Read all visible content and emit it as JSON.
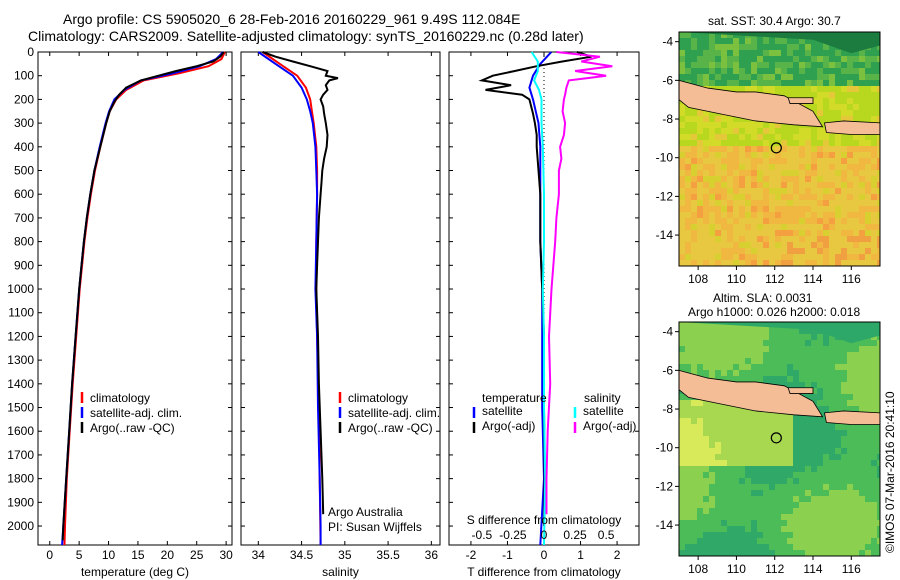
{
  "header": {
    "line1": "Argo profile: CS 5905020_6 28-Feb-2016 20160229_961 9.49S 112.084E",
    "line2": "Climatology: CARS2009. Satellite-adjusted climatology: synTS_20160229.nc (0.28d later)"
  },
  "colors": {
    "climatology": "#ff0000",
    "satellite": "#0000ff",
    "argo": "#000000",
    "salinity_satellite": "#00ffff",
    "salinity_argo": "#ff00ff",
    "land": "#f4bd96"
  },
  "chart_data": [
    {
      "type": "line",
      "panel": "temperature",
      "xlabel": "temperature (deg C)",
      "ylabel": "",
      "xlim": [
        -2,
        31
      ],
      "ylim": [
        2080,
        0
      ],
      "xticks": [
        0,
        5,
        10,
        15,
        20,
        25,
        30
      ],
      "yticks": [
        0,
        100,
        200,
        300,
        400,
        500,
        600,
        700,
        800,
        900,
        1000,
        1100,
        1200,
        1300,
        1400,
        1500,
        1600,
        1700,
        1800,
        1900,
        2000
      ],
      "legend": [
        "climatology",
        "satellite-adj. clim.",
        "Argo(..raw -QC)"
      ],
      "series": [
        {
          "name": "climatology",
          "depth": [
            0,
            30,
            60,
            90,
            120,
            160,
            200,
            250,
            300,
            400,
            500,
            600,
            700,
            800,
            900,
            1000,
            1200,
            1400,
            1600,
            1800,
            2000,
            2080
          ],
          "values": [
            29.8,
            29.2,
            27.0,
            22.0,
            16.0,
            13.0,
            11.3,
            10.2,
            9.6,
            8.6,
            7.7,
            7.0,
            6.4,
            5.9,
            5.5,
            5.1,
            4.5,
            3.9,
            3.4,
            2.9,
            2.6,
            2.5
          ]
        },
        {
          "name": "satellite-adj. clim.",
          "depth": [
            0,
            30,
            60,
            90,
            120,
            160,
            200,
            250,
            300,
            400,
            500,
            600,
            700,
            800,
            900,
            1000,
            1200,
            1400,
            1600,
            1800,
            2000,
            2080
          ],
          "values": [
            29.5,
            28.3,
            25.5,
            21.0,
            15.5,
            12.7,
            11.0,
            10.1,
            9.5,
            8.5,
            7.6,
            6.9,
            6.3,
            5.8,
            5.4,
            5.0,
            4.4,
            3.8,
            3.3,
            2.8,
            2.3,
            2.1
          ]
        },
        {
          "name": "Argo(..raw -QC)",
          "depth": [
            0,
            20,
            40,
            60,
            80,
            100,
            120,
            150,
            180,
            210,
            250,
            300,
            400,
            500,
            600,
            700,
            800,
            900,
            1000,
            1200,
            1400,
            1600,
            1800,
            2000,
            2060
          ],
          "values": [
            29.6,
            29.0,
            27.8,
            25.0,
            21.5,
            18.5,
            15.5,
            13.0,
            11.8,
            11.0,
            10.2,
            9.6,
            8.6,
            7.6,
            6.9,
            6.3,
            5.8,
            5.4,
            5.0,
            4.4,
            3.8,
            3.3,
            2.8,
            2.3,
            2.2
          ]
        }
      ]
    },
    {
      "type": "line",
      "panel": "salinity",
      "xlabel": "salinity",
      "xlim": [
        33.8,
        36.1
      ],
      "ylim": [
        2080,
        0
      ],
      "xticks": [
        34,
        34.5,
        35,
        35.5,
        36
      ],
      "legend": [
        "climatology",
        "satellite-adj. clim.",
        "Argo(..raw -QC)"
      ],
      "annotation": [
        "Argo Australia",
        "PI: Susan Wijffels"
      ],
      "series": [
        {
          "name": "climatology",
          "depth": [
            0,
            50,
            100,
            150,
            200,
            250,
            300,
            400,
            500,
            600,
            800,
            1000,
            1200,
            1500,
            1800,
            2080
          ],
          "values": [
            34.05,
            34.25,
            34.45,
            34.55,
            34.6,
            34.62,
            34.64,
            34.67,
            34.68,
            34.68,
            34.67,
            34.67,
            34.68,
            34.7,
            34.71,
            34.72
          ]
        },
        {
          "name": "satellite-adj. clim.",
          "depth": [
            0,
            50,
            100,
            150,
            200,
            250,
            300,
            400,
            500,
            600,
            800,
            1000,
            1200,
            1500,
            1800,
            2000,
            2080
          ],
          "values": [
            34.0,
            34.2,
            34.4,
            34.5,
            34.56,
            34.6,
            34.63,
            34.66,
            34.67,
            34.68,
            34.67,
            34.66,
            34.68,
            34.69,
            34.71,
            34.72,
            34.72
          ]
        },
        {
          "name": "Argo(..raw -QC)",
          "depth": [
            0,
            20,
            40,
            60,
            80,
            100,
            110,
            120,
            140,
            160,
            180,
            200,
            230,
            260,
            300,
            350,
            400,
            450,
            500,
            550,
            600,
            700,
            800,
            900,
            1000,
            1200,
            1400,
            1600,
            1800,
            1950
          ],
          "values": [
            34.05,
            34.2,
            34.4,
            34.6,
            34.8,
            34.78,
            34.92,
            34.82,
            34.78,
            34.8,
            34.75,
            34.72,
            34.75,
            34.76,
            34.78,
            34.8,
            34.79,
            34.76,
            34.74,
            34.73,
            34.72,
            34.7,
            34.69,
            34.68,
            34.67,
            34.69,
            34.7,
            34.72,
            34.74,
            34.75
          ]
        }
      ]
    },
    {
      "type": "line",
      "panel": "difference",
      "xlabel": "T difference from climatology",
      "top_axis_label": "S difference from climatology",
      "xlim": [
        -2.6,
        2.6
      ],
      "ylim": [
        2080,
        0
      ],
      "xticks": [
        -2,
        -1,
        0,
        1,
        2
      ],
      "top_ticks": [
        -0.5,
        -0.25,
        0,
        0.25,
        0.5
      ],
      "legend_temperature": [
        "temperature",
        "satellite",
        "Argo(-adj)"
      ],
      "legend_salinity": [
        "salinity",
        "satellite",
        "Argo(-adj)"
      ],
      "series": [
        {
          "name": "T satellite",
          "depth": [
            0,
            50,
            100,
            150,
            200,
            300,
            400,
            500,
            600,
            800,
            1000,
            1200,
            1500,
            1800,
            2080
          ],
          "values": [
            0.2,
            -0.1,
            -0.3,
            -0.4,
            -0.3,
            -0.15,
            -0.1,
            -0.1,
            -0.1,
            -0.1,
            -0.05,
            -0.05,
            -0.05,
            0,
            -0.1
          ]
        },
        {
          "name": "T Argo(-adj)",
          "depth": [
            0,
            20,
            40,
            60,
            80,
            100,
            120,
            140,
            160,
            180,
            200,
            230,
            260,
            300,
            350,
            400,
            500,
            600,
            700,
            800,
            1000,
            1200,
            1500,
            1800,
            2000
          ],
          "values": [
            0.9,
            1.3,
            0.5,
            -0.2,
            -0.8,
            -1.4,
            -1.7,
            -0.9,
            -1.6,
            -0.6,
            -0.4,
            -0.35,
            -0.3,
            -0.25,
            -0.2,
            -0.2,
            -0.15,
            -0.1,
            -0.1,
            -0.1,
            -0.05,
            0,
            0,
            0.02,
            0
          ]
        },
        {
          "name": "S satellite",
          "depth": [
            0,
            40,
            80,
            120,
            160,
            200,
            300,
            400,
            600,
            800,
            1000,
            1200,
            1500,
            1800,
            2080
          ],
          "values": [
            -0.1,
            -0.05,
            -0.05,
            -0.08,
            -0.04,
            -0.02,
            -0.02,
            -0.01,
            0,
            0,
            -0.01,
            0,
            0,
            0.01,
            0
          ]
        },
        {
          "name": "S Argo(-adj)",
          "depth": [
            0,
            20,
            40,
            60,
            80,
            100,
            110,
            120,
            150,
            180,
            200,
            250,
            300,
            350,
            400,
            450,
            500,
            600,
            700,
            800,
            1000,
            1200,
            1400,
            1600,
            1800,
            1950
          ],
          "values": [
            0.1,
            0.45,
            0.3,
            0.55,
            0.25,
            0.5,
            0.35,
            0.2,
            0.18,
            0.17,
            0.16,
            0.15,
            0.17,
            0.16,
            0.13,
            0.14,
            0.12,
            0.12,
            0.1,
            0.09,
            0.06,
            0.04,
            0.05,
            0.03,
            0.02,
            0.02
          ]
        }
      ]
    },
    {
      "type": "heatmap",
      "panel": "sst_map",
      "title": "sat. SST: 30.4  Argo: 30.7",
      "xticks": [
        108,
        110,
        112,
        114,
        116
      ],
      "yticks": [
        -4,
        -6,
        -8,
        -10,
        -12,
        -14
      ],
      "xlim": [
        107,
        117.5
      ],
      "ylim": [
        -15.6,
        -3.5
      ],
      "argo_position": [
        112.084,
        -9.49
      ]
    },
    {
      "type": "heatmap",
      "panel": "sla_map",
      "title": "Altim. SLA: 0.0031",
      "subtitle": "Argo h1000: 0.026  h2000: 0.018",
      "xticks": [
        108,
        110,
        112,
        114,
        116
      ],
      "yticks": [
        -4,
        -6,
        -8,
        -10,
        -12,
        -14
      ],
      "xlim": [
        107,
        117.5
      ],
      "ylim": [
        -15.6,
        -3.5
      ],
      "argo_position": [
        112.084,
        -9.49
      ]
    }
  ],
  "credit": "©IMOS 07-Mar-2016 20:41:10"
}
